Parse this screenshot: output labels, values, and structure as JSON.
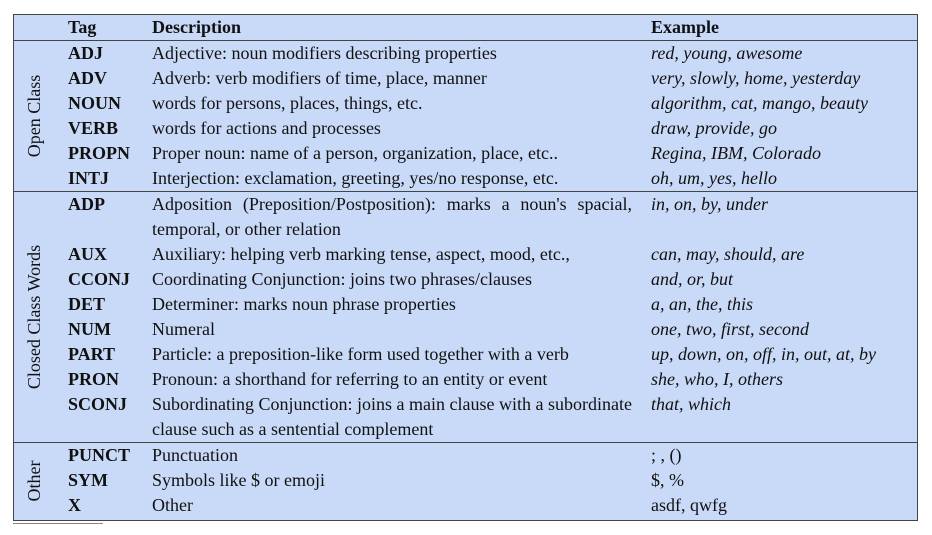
{
  "header": {
    "tag": "Tag",
    "description": "Description",
    "example": "Example"
  },
  "groups": [
    {
      "label": "Open Class",
      "rows": [
        {
          "tag": "ADJ",
          "desc": "Adjective: noun modifiers describing properties",
          "ex": "red, young, awesome"
        },
        {
          "tag": "ADV",
          "desc": "Adverb: verb modifiers of time, place, manner",
          "ex": "very, slowly, home, yesterday"
        },
        {
          "tag": "NOUN",
          "desc": "words for persons, places, things, etc.",
          "ex": "algorithm, cat, mango, beauty"
        },
        {
          "tag": "VERB",
          "desc": "words for actions and processes",
          "ex": "draw, provide, go"
        },
        {
          "tag": "PROPN",
          "desc": "Proper noun: name of a person, organization, place, etc..",
          "ex": "Regina, IBM, Colorado"
        },
        {
          "tag": "INTJ",
          "desc": "Interjection: exclamation, greeting, yes/no response, etc.",
          "ex": "oh, um, yes, hello"
        }
      ]
    },
    {
      "label": "Closed Class Words",
      "rows": [
        {
          "tag": "ADP",
          "desc": "Adposition (Preposition/Postposition): marks a noun's spacial, temporal, or other relation",
          "ex": "in, on, by, under"
        },
        {
          "tag": "AUX",
          "desc": "Auxiliary: helping verb marking tense, aspect, mood, etc.,",
          "ex": "can, may, should, are"
        },
        {
          "tag": "CCONJ",
          "desc": "Coordinating Conjunction: joins two phrases/clauses",
          "ex": "and, or, but"
        },
        {
          "tag": "DET",
          "desc": "Determiner: marks noun phrase properties",
          "ex": "a, an, the, this"
        },
        {
          "tag": "NUM",
          "desc": "Numeral",
          "ex": "one, two, first, second"
        },
        {
          "tag": "PART",
          "desc": "Particle: a preposition-like form used together with a verb",
          "ex": "up, down, on, off, in, out, at, by"
        },
        {
          "tag": "PRON",
          "desc": "Pronoun: a shorthand for referring to an entity or event",
          "ex": "she, who, I, others"
        },
        {
          "tag": "SCONJ",
          "desc": "Subordinating Conjunction: joins a main clause with a subordinate clause such as a sentential complement",
          "ex": "that, which"
        }
      ]
    },
    {
      "label": "Other",
      "rows": [
        {
          "tag": "PUNCT",
          "desc": "Punctuation",
          "ex": "; , ()"
        },
        {
          "tag": "SYM",
          "desc": "Symbols like $ or emoji",
          "ex": "$, %"
        },
        {
          "tag": "X",
          "desc": "Other",
          "ex": "asdf, qwfg"
        }
      ]
    }
  ],
  "colors": {
    "table_background": "#c9daf8",
    "rule": "#444444"
  }
}
